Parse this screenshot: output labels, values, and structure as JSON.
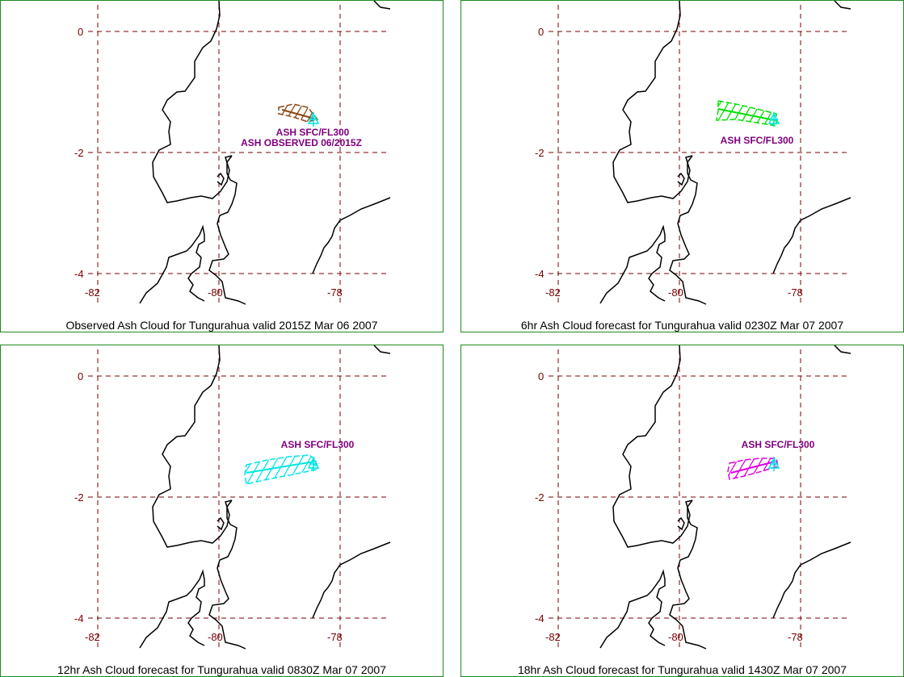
{
  "panels": [
    {
      "caption": "Observed Ash Cloud for Tungurahua valid 2015Z Mar 06 2007",
      "cloud_color": "#8b4513",
      "labels": [
        "ASH SFC/FL300",
        "ASH OBSERVED 06/2015Z"
      ]
    },
    {
      "caption": "6hr Ash Cloud forecast for Tungurahua valid 0230Z Mar 07 2007",
      "cloud_color": "#00e000",
      "labels": [
        "ASH SFC/FL300"
      ]
    },
    {
      "caption": "12hr Ash Cloud forecast for Tungurahua valid 0830Z Mar 07 2007",
      "cloud_color": "#00e5e5",
      "labels": [
        "ASH SFC/FL300"
      ]
    },
    {
      "caption": "18hr Ash Cloud forecast for Tungurahua valid 1430Z Mar 07 2007",
      "cloud_color": "#e000e0",
      "labels": [
        "ASH SFC/FL300"
      ]
    }
  ],
  "grid": {
    "lat_labels": [
      "0",
      "-2",
      "-4"
    ],
    "lon_labels": [
      "-82",
      "-80",
      "-78"
    ]
  },
  "colors": {
    "frame": "#1f8a1f",
    "grid": "#7a0000",
    "coast": "#000000",
    "volcano_marker": "#00e5e5",
    "label": "#800080"
  }
}
